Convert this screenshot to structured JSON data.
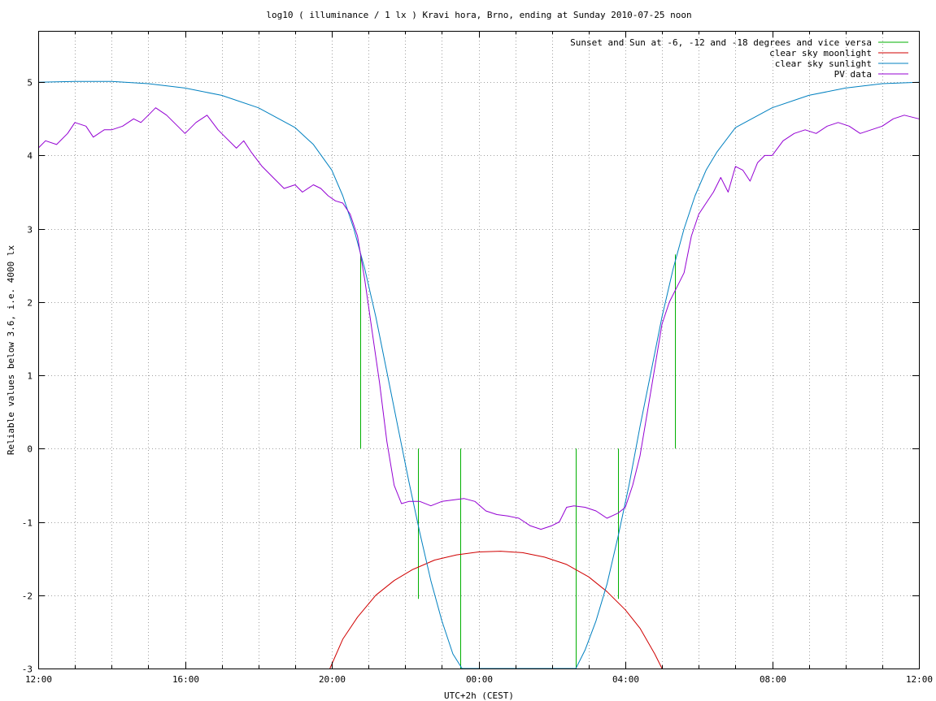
{
  "chart_data": {
    "type": "line",
    "title": "log10 ( illuminance / 1 lx ) Kravi hora, Brno, ending at Sunday 2010-07-25 noon",
    "xlabel": "UTC+2h (CEST)",
    "ylabel": "Reliable values below 3.6, i.e. 4000 lx",
    "x_unit": "hours since 2010-07-24 12:00",
    "xlim": [
      0,
      24
    ],
    "ylim": [
      -3,
      5.7
    ],
    "x_ticks": [
      {
        "value": 0,
        "label": "12:00"
      },
      {
        "value": 4,
        "label": "16:00"
      },
      {
        "value": 8,
        "label": "20:00"
      },
      {
        "value": 12,
        "label": "00:00"
      },
      {
        "value": 16,
        "label": "04:00"
      },
      {
        "value": 20,
        "label": "08:00"
      },
      {
        "value": 24,
        "label": "12:00"
      }
    ],
    "y_ticks": [
      {
        "value": -3,
        "label": "-3"
      },
      {
        "value": -2,
        "label": "-2"
      },
      {
        "value": -1,
        "label": "-1"
      },
      {
        "value": 0,
        "label": "0"
      },
      {
        "value": 1,
        "label": "1"
      },
      {
        "value": 2,
        "label": "2"
      },
      {
        "value": 3,
        "label": "3"
      },
      {
        "value": 4,
        "label": "4"
      },
      {
        "value": 5,
        "label": "5"
      }
    ],
    "x_minor_step": 1,
    "grid": true,
    "legend_position": "top-right",
    "series": [
      {
        "name": "Sunset and Sun at -6, -12 and -18 degrees and vice versa",
        "color": "#00b000",
        "style": "vertical-lines",
        "segments": [
          {
            "x": 8.78,
            "y_bottom": 0,
            "y_top": 2.65
          },
          {
            "x": 10.35,
            "y_bottom": -2.05,
            "y_top": 0
          },
          {
            "x": 11.5,
            "y_bottom": -3,
            "y_top": 0
          },
          {
            "x": 14.65,
            "y_bottom": -3,
            "y_top": 0
          },
          {
            "x": 15.8,
            "y_bottom": -2.05,
            "y_top": 0
          },
          {
            "x": 17.35,
            "y_bottom": 0,
            "y_top": 2.65
          }
        ]
      },
      {
        "name": "clear sky moonlight",
        "color": "#d00000",
        "style": "line",
        "x": [
          7.95,
          8.3,
          8.7,
          9.2,
          9.7,
          10.2,
          10.8,
          11.4,
          12.0,
          12.6,
          13.2,
          13.8,
          14.4,
          15.0,
          15.5,
          16.0,
          16.4,
          16.8,
          17.0
        ],
        "y": [
          -3.0,
          -2.6,
          -2.3,
          -2.0,
          -1.8,
          -1.65,
          -1.52,
          -1.45,
          -1.41,
          -1.4,
          -1.42,
          -1.48,
          -1.58,
          -1.75,
          -1.95,
          -2.2,
          -2.45,
          -2.8,
          -3.0
        ]
      },
      {
        "name": "clear sky sunlight",
        "color": "#0080c0",
        "style": "line",
        "x": [
          0,
          1,
          2,
          3,
          4,
          5,
          6,
          7,
          7.5,
          8,
          8.3,
          8.6,
          8.9,
          9.2,
          9.5,
          9.8,
          10.1,
          10.4,
          10.7,
          11.0,
          11.3,
          11.55,
          14.65,
          14.9,
          15.2,
          15.5,
          15.8,
          16.1,
          16.4,
          16.7,
          17.0,
          17.3,
          17.6,
          17.9,
          18.2,
          18.5,
          19,
          20,
          21,
          22,
          23,
          24
        ],
        "y": [
          5.0,
          5.01,
          5.01,
          4.98,
          4.92,
          4.82,
          4.65,
          4.38,
          4.15,
          3.8,
          3.45,
          3.0,
          2.45,
          1.8,
          1.05,
          0.3,
          -0.45,
          -1.15,
          -1.8,
          -2.35,
          -2.8,
          -3.0,
          -3.0,
          -2.75,
          -2.35,
          -1.85,
          -1.2,
          -0.5,
          0.3,
          1.05,
          1.8,
          2.45,
          3.0,
          3.45,
          3.8,
          4.05,
          4.38,
          4.65,
          4.82,
          4.92,
          4.98,
          5.0
        ]
      },
      {
        "name": "PV data",
        "color": "#9400d3",
        "style": "line",
        "x": [
          0,
          0.2,
          0.5,
          0.8,
          1.0,
          1.3,
          1.5,
          1.8,
          2.0,
          2.3,
          2.6,
          2.8,
          3.0,
          3.2,
          3.5,
          3.8,
          4.0,
          4.3,
          4.6,
          4.9,
          5.1,
          5.4,
          5.6,
          5.8,
          6.1,
          6.4,
          6.7,
          7.0,
          7.2,
          7.5,
          7.7,
          7.9,
          8.1,
          8.3,
          8.5,
          8.7,
          8.9,
          9.1,
          9.3,
          9.5,
          9.7,
          9.9,
          10.1,
          10.4,
          10.7,
          11.0,
          11.3,
          11.6,
          11.9,
          12.2,
          12.5,
          12.8,
          13.1,
          13.4,
          13.7,
          14.0,
          14.2,
          14.4,
          14.6,
          14.9,
          15.2,
          15.5,
          15.8,
          16.0,
          16.2,
          16.4,
          16.6,
          16.8,
          17.0,
          17.2,
          17.4,
          17.6,
          17.8,
          18.0,
          18.2,
          18.4,
          18.6,
          18.8,
          19.0,
          19.2,
          19.4,
          19.6,
          19.8,
          20.0,
          20.3,
          20.6,
          20.9,
          21.2,
          21.5,
          21.8,
          22.1,
          22.4,
          22.7,
          23.0,
          23.3,
          23.6,
          24.0
        ],
        "y": [
          4.1,
          4.2,
          4.15,
          4.3,
          4.45,
          4.4,
          4.25,
          4.35,
          4.35,
          4.4,
          4.5,
          4.45,
          4.55,
          4.65,
          4.55,
          4.4,
          4.3,
          4.45,
          4.55,
          4.35,
          4.25,
          4.1,
          4.2,
          4.05,
          3.85,
          3.7,
          3.55,
          3.6,
          3.5,
          3.6,
          3.55,
          3.45,
          3.38,
          3.35,
          3.2,
          2.9,
          2.3,
          1.6,
          0.9,
          0.1,
          -0.5,
          -0.75,
          -0.72,
          -0.72,
          -0.78,
          -0.72,
          -0.7,
          -0.68,
          -0.72,
          -0.85,
          -0.9,
          -0.92,
          -0.95,
          -1.05,
          -1.1,
          -1.05,
          -1.0,
          -0.8,
          -0.78,
          -0.8,
          -0.85,
          -0.95,
          -0.88,
          -0.8,
          -0.5,
          -0.1,
          0.5,
          1.1,
          1.7,
          2.0,
          2.2,
          2.4,
          2.9,
          3.2,
          3.35,
          3.5,
          3.7,
          3.5,
          3.85,
          3.8,
          3.65,
          3.9,
          4.0,
          4.0,
          4.2,
          4.3,
          4.35,
          4.3,
          4.4,
          4.45,
          4.4,
          4.3,
          4.35,
          4.4,
          4.5,
          4.55,
          4.5
        ]
      }
    ]
  }
}
